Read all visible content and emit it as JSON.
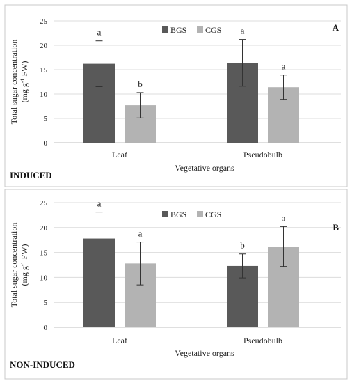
{
  "chart_data": [
    {
      "type": "bar",
      "panel_tag": "A",
      "panel_name": "INDUCED",
      "categories": [
        "Leaf",
        "Pseudobulb"
      ],
      "series": [
        {
          "name": "BGS",
          "values": [
            16.2,
            16.4
          ],
          "errors": [
            4.7,
            4.8
          ],
          "letters": [
            "a",
            "a"
          ],
          "color": "#595959"
        },
        {
          "name": "CGS",
          "values": [
            7.7,
            11.4
          ],
          "errors": [
            2.6,
            2.5
          ],
          "letters": [
            "b",
            "a"
          ],
          "color": "#b3b3b3"
        }
      ],
      "xlabel": "Vegetative organs",
      "ylabel_main": "Total sugar concentration",
      "ylabel_unit_pre": "(mg g",
      "ylabel_unit_sup": "-1",
      "ylabel_unit_post": " FW)",
      "ylim": [
        0,
        25
      ],
      "yticks": [
        0,
        5,
        10,
        15,
        20,
        25
      ],
      "grid": true,
      "legend_position": "top-center"
    },
    {
      "type": "bar",
      "panel_tag": "B",
      "panel_name": "NON-INDUCED",
      "categories": [
        "Leaf",
        "Pseudobulb"
      ],
      "series": [
        {
          "name": "BGS",
          "values": [
            17.8,
            12.3
          ],
          "errors": [
            5.3,
            2.4
          ],
          "letters": [
            "a",
            "b"
          ],
          "color": "#595959"
        },
        {
          "name": "CGS",
          "values": [
            12.8,
            16.2
          ],
          "errors": [
            4.3,
            4.0
          ],
          "letters": [
            "a",
            "a"
          ],
          "color": "#b3b3b3"
        }
      ],
      "xlabel": "Vegetative organs",
      "ylabel_main": "Total sugar concentration",
      "ylabel_unit_pre": "(mg g",
      "ylabel_unit_sup": "-1",
      "ylabel_unit_post": " FW)",
      "ylim": [
        0,
        25
      ],
      "yticks": [
        0,
        5,
        10,
        15,
        20,
        25
      ],
      "grid": true,
      "legend_position": "top-center"
    }
  ]
}
